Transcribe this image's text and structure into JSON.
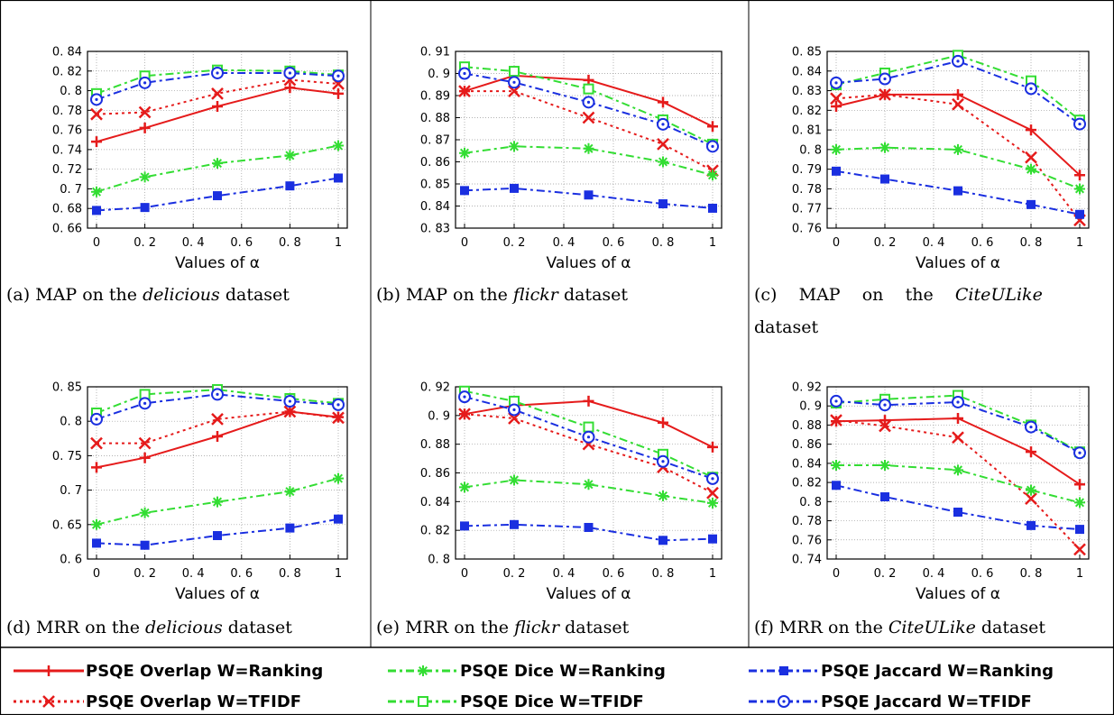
{
  "colors": {
    "overlap": "#e51b1b",
    "dice": "#33dd33",
    "jaccard": "#1a2fe0"
  },
  "legend": [
    {
      "label": "PSQE Overlap W=Ranking",
      "color_key": "overlap",
      "dash": "solid",
      "marker": "plus"
    },
    {
      "label": "PSQE Dice W=Ranking",
      "color_key": "dice",
      "dash": "dotdash",
      "marker": "star"
    },
    {
      "label": "PSQE Jaccard W=Ranking",
      "color_key": "jaccard",
      "dash": "dotdash",
      "marker": "filled-square"
    },
    {
      "label": "PSQE Overlap W=TFIDF",
      "color_key": "overlap",
      "dash": "dot",
      "marker": "cross"
    },
    {
      "label": "PSQE Dice W=TFIDF",
      "color_key": "dice",
      "dash": "dotdash",
      "marker": "open-square"
    },
    {
      "label": "PSQE Jaccard W=TFIDF",
      "color_key": "jaccard",
      "dash": "dotdash",
      "marker": "open-circle"
    }
  ],
  "chart_data": [
    {
      "type": "line",
      "caption": [
        "(a) MAP on the ",
        "delicious",
        " dataset"
      ],
      "xlabel": "Values of α",
      "x": [
        0,
        0.2,
        0.5,
        0.8,
        1
      ],
      "xticks": [
        "0",
        "0. 2",
        "0. 4",
        "0. 6",
        "0. 8",
        "1"
      ],
      "ylim": [
        0.66,
        0.84
      ],
      "yticks": [
        "0. 66",
        "0. 68",
        "0. 7",
        "0. 72",
        "0. 74",
        "0. 76",
        "0. 78",
        "0. 8",
        "0. 82",
        "0. 84"
      ],
      "series": [
        {
          "ref": 0,
          "values": [
            0.748,
            0.762,
            0.784,
            0.803,
            0.797
          ]
        },
        {
          "ref": 3,
          "values": [
            0.776,
            0.778,
            0.797,
            0.811,
            0.807
          ]
        },
        {
          "ref": 1,
          "values": [
            0.697,
            0.712,
            0.726,
            0.734,
            0.744
          ]
        },
        {
          "ref": 4,
          "values": [
            0.797,
            0.815,
            0.821,
            0.82,
            0.816
          ]
        },
        {
          "ref": 2,
          "values": [
            0.678,
            0.681,
            0.693,
            0.703,
            0.711
          ]
        },
        {
          "ref": 5,
          "values": [
            0.791,
            0.808,
            0.818,
            0.818,
            0.815
          ]
        }
      ]
    },
    {
      "type": "line",
      "caption": [
        "(b) MAP on the ",
        "flickr",
        " dataset"
      ],
      "xlabel": "Values of α",
      "x": [
        0,
        0.2,
        0.5,
        0.8,
        1
      ],
      "xticks": [
        "0",
        "0. 2",
        "0. 4",
        "0. 6",
        "0. 8",
        "1"
      ],
      "ylim": [
        0.83,
        0.91
      ],
      "yticks": [
        "0. 83",
        "0. 84",
        "0. 85",
        "0. 86",
        "0. 87",
        "0. 88",
        "0. 89",
        "0. 9",
        "0. 91"
      ],
      "series": [
        {
          "ref": 0,
          "values": [
            0.892,
            0.899,
            0.897,
            0.887,
            0.876
          ]
        },
        {
          "ref": 3,
          "values": [
            0.892,
            0.892,
            0.88,
            0.868,
            0.856
          ]
        },
        {
          "ref": 1,
          "values": [
            0.864,
            0.867,
            0.866,
            0.86,
            0.854
          ]
        },
        {
          "ref": 4,
          "values": [
            0.903,
            0.901,
            0.893,
            0.879,
            0.868
          ]
        },
        {
          "ref": 2,
          "values": [
            0.847,
            0.848,
            0.845,
            0.841,
            0.839
          ]
        },
        {
          "ref": 5,
          "values": [
            0.9,
            0.896,
            0.887,
            0.877,
            0.867
          ]
        }
      ]
    },
    {
      "type": "line",
      "caption": [
        "(c)    MAP    on    the    ",
        "CiteULike",
        ""
      ],
      "caption2": "dataset",
      "xlabel": "Values of α",
      "x": [
        0,
        0.2,
        0.5,
        0.8,
        1
      ],
      "xticks": [
        "0",
        "0. 2",
        "0. 4",
        "0. 6",
        "0. 8",
        "1"
      ],
      "ylim": [
        0.76,
        0.85
      ],
      "yticks": [
        "0. 76",
        "0. 77",
        "0. 78",
        "0. 79",
        "0. 8",
        "0. 81",
        "0. 82",
        "0. 83",
        "0. 84",
        "0. 85"
      ],
      "series": [
        {
          "ref": 0,
          "values": [
            0.822,
            0.828,
            0.828,
            0.81,
            0.787
          ]
        },
        {
          "ref": 3,
          "values": [
            0.826,
            0.828,
            0.823,
            0.796,
            0.764
          ]
        },
        {
          "ref": 1,
          "values": [
            0.8,
            0.801,
            0.8,
            0.79,
            0.78
          ]
        },
        {
          "ref": 4,
          "values": [
            0.833,
            0.839,
            0.848,
            0.835,
            0.815
          ]
        },
        {
          "ref": 2,
          "values": [
            0.789,
            0.785,
            0.779,
            0.772,
            0.767
          ]
        },
        {
          "ref": 5,
          "values": [
            0.834,
            0.836,
            0.845,
            0.831,
            0.813
          ]
        }
      ]
    },
    {
      "type": "line",
      "caption": [
        "(d) MRR on the ",
        "delicious",
        " dataset"
      ],
      "xlabel": "Values of α",
      "x": [
        0,
        0.2,
        0.5,
        0.8,
        1
      ],
      "xticks": [
        "0",
        "0. 2",
        "0. 4",
        "0. 6",
        "0. 8",
        "1"
      ],
      "ylim": [
        0.6,
        0.85
      ],
      "yticks": [
        "0. 6",
        "0. 65",
        "0. 7",
        "0. 75",
        "0. 8",
        "0. 85"
      ],
      "series": [
        {
          "ref": 0,
          "values": [
            0.733,
            0.747,
            0.778,
            0.814,
            0.806
          ]
        },
        {
          "ref": 3,
          "values": [
            0.768,
            0.768,
            0.803,
            0.814,
            0.805
          ]
        },
        {
          "ref": 1,
          "values": [
            0.65,
            0.667,
            0.683,
            0.698,
            0.717
          ]
        },
        {
          "ref": 4,
          "values": [
            0.812,
            0.839,
            0.846,
            0.833,
            0.826
          ]
        },
        {
          "ref": 2,
          "values": [
            0.623,
            0.62,
            0.634,
            0.645,
            0.658
          ]
        },
        {
          "ref": 5,
          "values": [
            0.803,
            0.826,
            0.839,
            0.829,
            0.824
          ]
        }
      ]
    },
    {
      "type": "line",
      "caption": [
        "(e) MRR on the ",
        "flickr",
        " dataset"
      ],
      "xlabel": "Values of α",
      "x": [
        0,
        0.2,
        0.5,
        0.8,
        1
      ],
      "xticks": [
        "0",
        "0. 2",
        "0. 4",
        "0. 6",
        "0. 8",
        "1"
      ],
      "ylim": [
        0.8,
        0.92
      ],
      "yticks": [
        "0. 8",
        "0. 82",
        "0. 84",
        "0. 86",
        "0. 88",
        "0. 9",
        "0. 92"
      ],
      "series": [
        {
          "ref": 0,
          "values": [
            0.901,
            0.907,
            0.91,
            0.895,
            0.878
          ]
        },
        {
          "ref": 3,
          "values": [
            0.901,
            0.898,
            0.88,
            0.864,
            0.846
          ]
        },
        {
          "ref": 1,
          "values": [
            0.85,
            0.855,
            0.852,
            0.844,
            0.839
          ]
        },
        {
          "ref": 4,
          "values": [
            0.917,
            0.91,
            0.892,
            0.873,
            0.857
          ]
        },
        {
          "ref": 2,
          "values": [
            0.823,
            0.824,
            0.822,
            0.813,
            0.814
          ]
        },
        {
          "ref": 5,
          "values": [
            0.913,
            0.904,
            0.885,
            0.868,
            0.856
          ]
        }
      ]
    },
    {
      "type": "line",
      "caption": [
        "(f) MRR on the ",
        "CiteULike",
        " dataset"
      ],
      "xlabel": "Values of α",
      "x": [
        0,
        0.2,
        0.5,
        0.8,
        1
      ],
      "xticks": [
        "0",
        "0. 2",
        "0. 4",
        "0. 6",
        "0. 8",
        "1"
      ],
      "ylim": [
        0.74,
        0.92
      ],
      "yticks": [
        "0. 74",
        "0. 76",
        "0. 78",
        "0. 8",
        "0. 82",
        "0. 84",
        "0. 86",
        "0. 88",
        "0. 9",
        "0. 92"
      ],
      "series": [
        {
          "ref": 0,
          "values": [
            0.884,
            0.885,
            0.887,
            0.852,
            0.818
          ]
        },
        {
          "ref": 3,
          "values": [
            0.885,
            0.879,
            0.867,
            0.803,
            0.75
          ]
        },
        {
          "ref": 1,
          "values": [
            0.838,
            0.838,
            0.833,
            0.812,
            0.799
          ]
        },
        {
          "ref": 4,
          "values": [
            0.903,
            0.907,
            0.911,
            0.88,
            0.852
          ]
        },
        {
          "ref": 2,
          "values": [
            0.817,
            0.805,
            0.789,
            0.775,
            0.771
          ]
        },
        {
          "ref": 5,
          "values": [
            0.905,
            0.901,
            0.904,
            0.878,
            0.851
          ]
        }
      ]
    }
  ]
}
